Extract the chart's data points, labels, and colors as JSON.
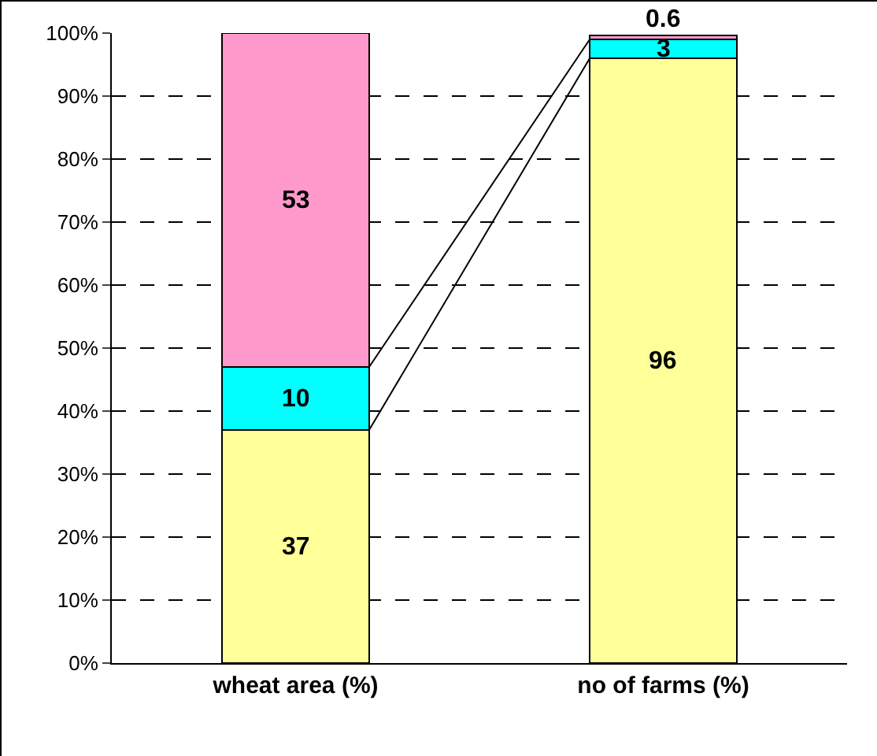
{
  "chart_data": {
    "type": "bar",
    "stacked": true,
    "categories": [
      "wheat area (%)",
      "no of farms (%)"
    ],
    "series": [
      {
        "color": "#ffff99",
        "values": [
          37,
          96
        ]
      },
      {
        "color": "#00ffff",
        "values": [
          10,
          3
        ]
      },
      {
        "color": "#ff99cc",
        "values": [
          53,
          0.6
        ]
      }
    ],
    "data_labels": true,
    "grid": "y",
    "legend": false,
    "ylim": [
      0,
      100
    ],
    "yticks": [
      {
        "value": 0,
        "label": "0%"
      },
      {
        "value": 10,
        "label": "10%"
      },
      {
        "value": 20,
        "label": "20%"
      },
      {
        "value": 30,
        "label": "30%"
      },
      {
        "value": 40,
        "label": "40%"
      },
      {
        "value": 50,
        "label": "50%"
      },
      {
        "value": 60,
        "label": "60%"
      },
      {
        "value": 70,
        "label": "70%"
      },
      {
        "value": 80,
        "label": "80%"
      },
      {
        "value": 90,
        "label": "90%"
      },
      {
        "value": 100,
        "label": "100%"
      }
    ]
  }
}
